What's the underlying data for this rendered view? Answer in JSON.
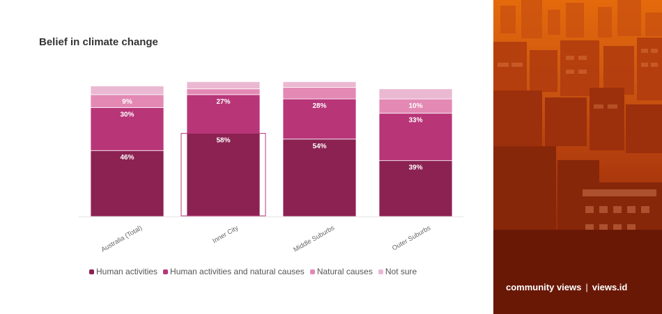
{
  "chart_data": {
    "type": "bar",
    "stacked": true,
    "title": "Belief in climate change",
    "categories": [
      "Australia (Total)",
      "Inner City",
      "Middle Suburbs",
      "Outer Suburbs"
    ],
    "series": [
      {
        "name": "Human activities",
        "color": "#8b2252",
        "values": [
          46,
          58,
          54,
          39
        ],
        "labels": [
          "46%",
          "58%",
          "54%",
          "39%"
        ]
      },
      {
        "name": "Human activities and natural causes",
        "color": "#b83578",
        "values": [
          30,
          27,
          28,
          33
        ],
        "labels": [
          "30%",
          "27%",
          "28%",
          "33%"
        ]
      },
      {
        "name": "Natural causes",
        "color": "#e389b4",
        "values": [
          9,
          4,
          8,
          10
        ],
        "labels": [
          "9%",
          "",
          "",
          "10%"
        ]
      },
      {
        "name": "Not sure",
        "color": "#ebb8d2",
        "values": [
          6,
          5,
          4,
          7
        ],
        "labels": [
          "",
          "",
          "",
          ""
        ]
      }
    ],
    "ylim": [
      0,
      100
    ],
    "grid": false,
    "legend": "bottom",
    "highlighted_category": "Inner City"
  },
  "brand": {
    "name": "community views",
    "separator": "|",
    "site": "views.id"
  }
}
